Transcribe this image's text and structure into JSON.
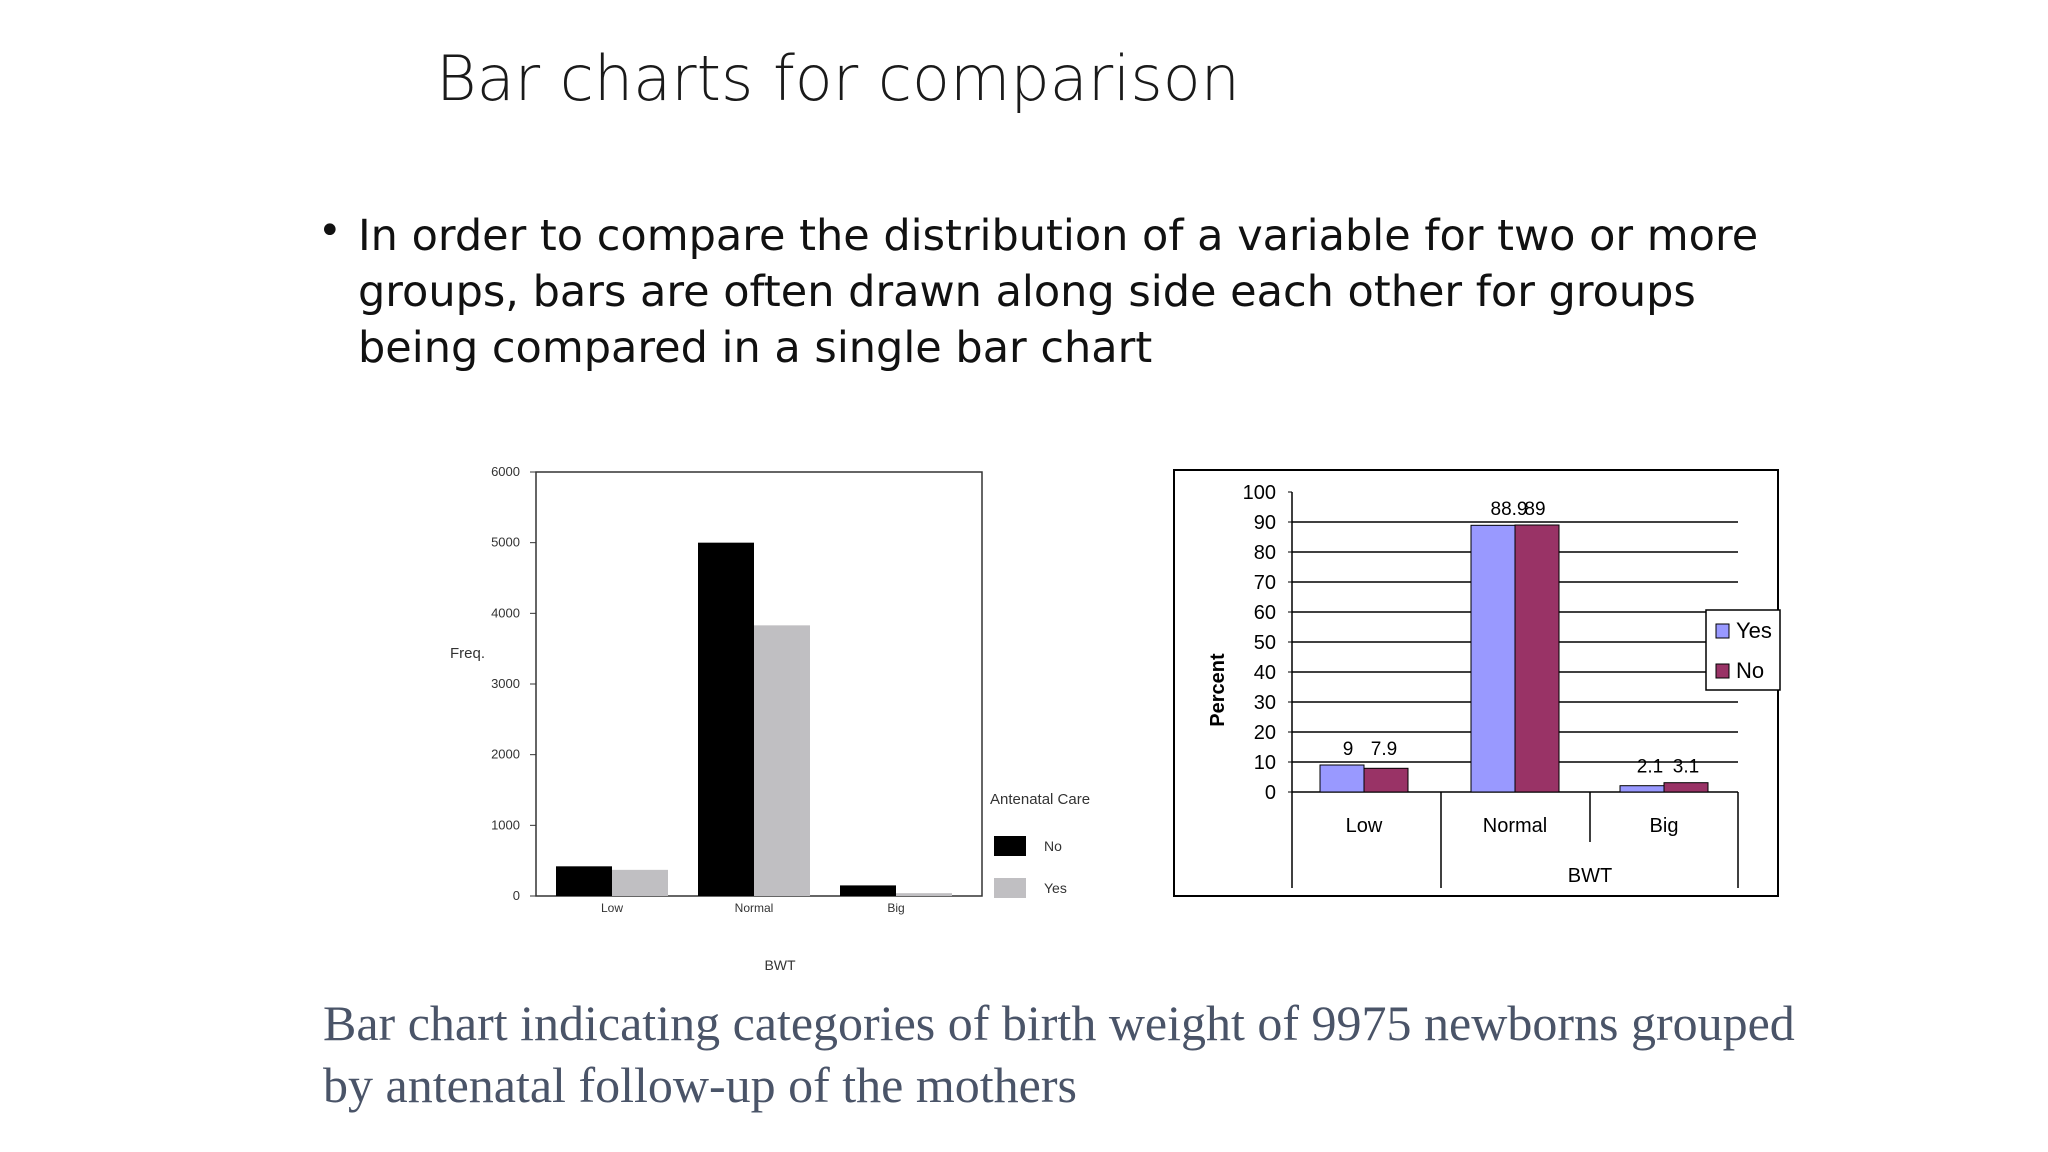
{
  "slide": {
    "title": "Bar charts for comparison",
    "bullet": "In order to compare the distribution of a variable for two or more groups, bars are often drawn along side each other for groups being compared in a single bar chart",
    "caption": "Bar chart indicating categories of birth weight of 9975 newborns grouped by antenatal follow-up of the mothers"
  },
  "chart_data": [
    {
      "type": "bar",
      "categories": [
        "Low",
        "Normal",
        "Big"
      ],
      "series": [
        {
          "name": "No",
          "values": [
            420,
            5000,
            150
          ],
          "color": "#000000"
        },
        {
          "name": "Yes",
          "values": [
            370,
            3830,
            40
          ],
          "color": "#c0bfc2"
        }
      ],
      "title": "",
      "xlabel": "BWT",
      "ylabel": "Freq.",
      "ylim": [
        0,
        6000
      ],
      "yticks": [
        "0",
        "1000",
        "2000",
        "3000",
        "4000",
        "5000",
        "6000"
      ],
      "legend_title": "Antenatal Care",
      "legend_position": "right",
      "grid": false
    },
    {
      "type": "bar",
      "categories": [
        "Low",
        "Normal",
        "Big"
      ],
      "series": [
        {
          "name": "Yes",
          "values": [
            9,
            88.9,
            2.1
          ],
          "labels": [
            "9",
            "88.9",
            "2.1"
          ],
          "color": "#9999ff"
        },
        {
          "name": "No",
          "values": [
            7.9,
            89,
            3.1
          ],
          "labels": [
            "7.9",
            "89",
            "3.1"
          ],
          "color": "#993366"
        }
      ],
      "title": "",
      "xlabel": "BWT",
      "ylabel": "Percent",
      "ylim": [
        0,
        100
      ],
      "yticks": [
        "0",
        "10",
        "20",
        "30",
        "40",
        "50",
        "60",
        "70",
        "80",
        "90",
        "100"
      ],
      "legend_position": "right",
      "grid": true
    }
  ]
}
